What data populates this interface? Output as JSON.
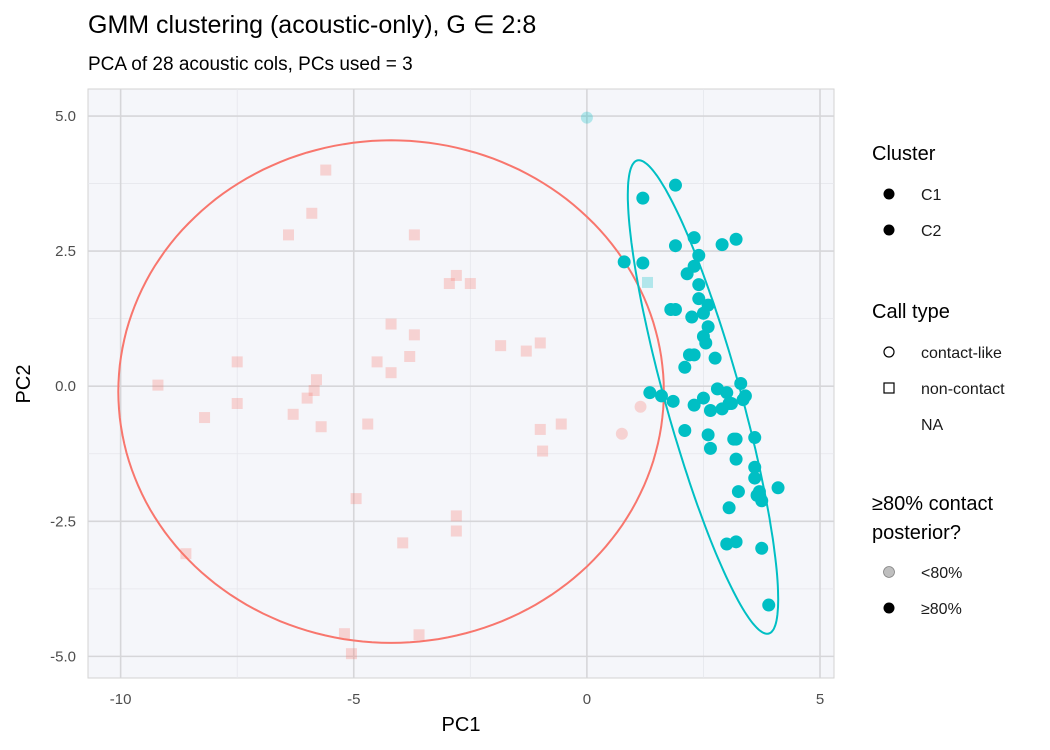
{
  "chart_data": {
    "type": "scatter",
    "title": "GMM clustering (acoustic-only), G ∈ 2:8",
    "subtitle": "PCA of 28 acoustic cols, PCs used = 3",
    "xlabel": "PC1",
    "ylabel": "PC2",
    "xlim": [
      -10.7,
      5.3
    ],
    "ylim": [
      -5.4,
      5.5
    ],
    "xticks": [
      -10,
      -5,
      0,
      5
    ],
    "xtick_labels": [
      "-10",
      "-5",
      "0",
      "5"
    ],
    "yticks": [
      -5,
      -2.5,
      0,
      2.5,
      5
    ],
    "ytick_labels": [
      "-5.0",
      "-2.5",
      "0.0",
      "2.5",
      "5.0"
    ],
    "grid": true,
    "background": "#f5f6fa",
    "legend_position": "right",
    "colors": {
      "C1": "#f8766d",
      "C2": "#00bfc4"
    },
    "legends": {
      "cluster": {
        "title": "Cluster",
        "items": [
          "C1",
          "C2"
        ]
      },
      "call_type": {
        "title": "Call type",
        "items": [
          "contact-like",
          "non-contact",
          "NA"
        ]
      },
      "posterior": {
        "title_lines": [
          "≥80% contact",
          "posterior?"
        ],
        "items": [
          "<80%",
          "≥80%"
        ]
      }
    },
    "ellipses": [
      {
        "cluster": "C1",
        "center": [
          -4.2,
          -0.1
        ],
        "rx": 5.85,
        "ry": 4.65,
        "angle": 0
      },
      {
        "cluster": "C2",
        "center": [
          2.49,
          -0.2
        ],
        "rx": 4.6,
        "ry": 0.8,
        "angle": -72
      }
    ],
    "points": [
      {
        "x": -5.6,
        "y": 4.0,
        "cluster": "C1",
        "shape": "square",
        "confident": false
      },
      {
        "x": -5.9,
        "y": 3.2,
        "cluster": "C1",
        "shape": "square",
        "confident": false
      },
      {
        "x": -6.4,
        "y": 2.8,
        "cluster": "C1",
        "shape": "square",
        "confident": false
      },
      {
        "x": -3.7,
        "y": 2.8,
        "cluster": "C1",
        "shape": "square",
        "confident": false
      },
      {
        "x": -2.8,
        "y": 2.05,
        "cluster": "C1",
        "shape": "square",
        "confident": false
      },
      {
        "x": -2.95,
        "y": 1.9,
        "cluster": "C1",
        "shape": "square",
        "confident": false
      },
      {
        "x": -2.5,
        "y": 1.9,
        "cluster": "C1",
        "shape": "square",
        "confident": false
      },
      {
        "x": -4.2,
        "y": 1.15,
        "cluster": "C1",
        "shape": "square",
        "confident": false
      },
      {
        "x": -3.7,
        "y": 0.95,
        "cluster": "C1",
        "shape": "square",
        "confident": false
      },
      {
        "x": -1.0,
        "y": 0.8,
        "cluster": "C1",
        "shape": "square",
        "confident": false
      },
      {
        "x": -1.85,
        "y": 0.75,
        "cluster": "C1",
        "shape": "square",
        "confident": false
      },
      {
        "x": -1.3,
        "y": 0.65,
        "cluster": "C1",
        "shape": "square",
        "confident": false
      },
      {
        "x": -3.8,
        "y": 0.55,
        "cluster": "C1",
        "shape": "square",
        "confident": false
      },
      {
        "x": -4.5,
        "y": 0.45,
        "cluster": "C1",
        "shape": "square",
        "confident": false
      },
      {
        "x": -7.5,
        "y": 0.45,
        "cluster": "C1",
        "shape": "square",
        "confident": false
      },
      {
        "x": -4.2,
        "y": 0.25,
        "cluster": "C1",
        "shape": "square",
        "confident": false
      },
      {
        "x": -5.8,
        "y": 0.12,
        "cluster": "C1",
        "shape": "square",
        "confident": false
      },
      {
        "x": -9.2,
        "y": 0.02,
        "cluster": "C1",
        "shape": "square",
        "confident": false
      },
      {
        "x": -5.85,
        "y": -0.08,
        "cluster": "C1",
        "shape": "square",
        "confident": false
      },
      {
        "x": -6.0,
        "y": -0.22,
        "cluster": "C1",
        "shape": "square",
        "confident": false
      },
      {
        "x": -7.5,
        "y": -0.32,
        "cluster": "C1",
        "shape": "square",
        "confident": false
      },
      {
        "x": -6.3,
        "y": -0.52,
        "cluster": "C1",
        "shape": "square",
        "confident": false
      },
      {
        "x": -8.2,
        "y": -0.58,
        "cluster": "C1",
        "shape": "square",
        "confident": false
      },
      {
        "x": -5.7,
        "y": -0.75,
        "cluster": "C1",
        "shape": "square",
        "confident": false
      },
      {
        "x": -4.7,
        "y": -0.7,
        "cluster": "C1",
        "shape": "square",
        "confident": false
      },
      {
        "x": -0.55,
        "y": -0.7,
        "cluster": "C1",
        "shape": "square",
        "confident": false
      },
      {
        "x": -1.0,
        "y": -0.8,
        "cluster": "C1",
        "shape": "square",
        "confident": false
      },
      {
        "x": -0.95,
        "y": -1.2,
        "cluster": "C1",
        "shape": "square",
        "confident": false
      },
      {
        "x": -4.95,
        "y": -2.08,
        "cluster": "C1",
        "shape": "square",
        "confident": false
      },
      {
        "x": -2.8,
        "y": -2.4,
        "cluster": "C1",
        "shape": "square",
        "confident": false
      },
      {
        "x": -2.8,
        "y": -2.68,
        "cluster": "C1",
        "shape": "square",
        "confident": false
      },
      {
        "x": -3.95,
        "y": -2.9,
        "cluster": "C1",
        "shape": "square",
        "confident": false
      },
      {
        "x": -8.6,
        "y": -3.1,
        "cluster": "C1",
        "shape": "square",
        "confident": false
      },
      {
        "x": -5.2,
        "y": -4.58,
        "cluster": "C1",
        "shape": "square",
        "confident": false
      },
      {
        "x": -3.6,
        "y": -4.6,
        "cluster": "C1",
        "shape": "square",
        "confident": false
      },
      {
        "x": -5.05,
        "y": -4.95,
        "cluster": "C1",
        "shape": "square",
        "confident": false
      },
      {
        "x": 1.15,
        "y": -0.38,
        "cluster": "C1",
        "shape": "circle",
        "confident": false
      },
      {
        "x": 0.75,
        "y": -0.88,
        "cluster": "C1",
        "shape": "circle",
        "confident": false
      },
      {
        "x": 0.0,
        "y": 4.97,
        "cluster": "C2",
        "shape": "circle",
        "confident": false
      },
      {
        "x": 1.3,
        "y": 1.92,
        "cluster": "C2",
        "shape": "square",
        "confident": false
      },
      {
        "x": 1.9,
        "y": 3.72,
        "cluster": "C2",
        "shape": "circle",
        "confident": true
      },
      {
        "x": 1.2,
        "y": 3.48,
        "cluster": "C2",
        "shape": "circle",
        "confident": true
      },
      {
        "x": 3.2,
        "y": 2.72,
        "cluster": "C2",
        "shape": "circle",
        "confident": true
      },
      {
        "x": 2.3,
        "y": 2.75,
        "cluster": "C2",
        "shape": "circle",
        "confident": true
      },
      {
        "x": 2.9,
        "y": 2.62,
        "cluster": "C2",
        "shape": "circle",
        "confident": true
      },
      {
        "x": 1.9,
        "y": 2.6,
        "cluster": "C2",
        "shape": "circle",
        "confident": true
      },
      {
        "x": 2.4,
        "y": 2.42,
        "cluster": "C2",
        "shape": "circle",
        "confident": true
      },
      {
        "x": 0.8,
        "y": 2.3,
        "cluster": "C2",
        "shape": "circle",
        "confident": true
      },
      {
        "x": 1.2,
        "y": 2.28,
        "cluster": "C2",
        "shape": "circle",
        "confident": true
      },
      {
        "x": 2.3,
        "y": 2.22,
        "cluster": "C2",
        "shape": "circle",
        "confident": true
      },
      {
        "x": 2.15,
        "y": 2.08,
        "cluster": "C2",
        "shape": "circle",
        "confident": true
      },
      {
        "x": 2.4,
        "y": 1.88,
        "cluster": "C2",
        "shape": "circle",
        "confident": true
      },
      {
        "x": 2.4,
        "y": 1.62,
        "cluster": "C2",
        "shape": "circle",
        "confident": true
      },
      {
        "x": 2.6,
        "y": 1.5,
        "cluster": "C2",
        "shape": "circle",
        "confident": true
      },
      {
        "x": 1.8,
        "y": 1.42,
        "cluster": "C2",
        "shape": "circle",
        "confident": true
      },
      {
        "x": 1.9,
        "y": 1.42,
        "cluster": "C2",
        "shape": "circle",
        "confident": true
      },
      {
        "x": 2.5,
        "y": 1.35,
        "cluster": "C2",
        "shape": "circle",
        "confident": true
      },
      {
        "x": 2.25,
        "y": 1.28,
        "cluster": "C2",
        "shape": "circle",
        "confident": true
      },
      {
        "x": 2.6,
        "y": 1.1,
        "cluster": "C2",
        "shape": "circle",
        "confident": true
      },
      {
        "x": 2.5,
        "y": 0.92,
        "cluster": "C2",
        "shape": "circle",
        "confident": true
      },
      {
        "x": 2.55,
        "y": 0.8,
        "cluster": "C2",
        "shape": "circle",
        "confident": true
      },
      {
        "x": 2.2,
        "y": 0.58,
        "cluster": "C2",
        "shape": "circle",
        "confident": true
      },
      {
        "x": 2.3,
        "y": 0.58,
        "cluster": "C2",
        "shape": "circle",
        "confident": true
      },
      {
        "x": 2.75,
        "y": 0.52,
        "cluster": "C2",
        "shape": "circle",
        "confident": true
      },
      {
        "x": 2.1,
        "y": 0.35,
        "cluster": "C2",
        "shape": "circle",
        "confident": true
      },
      {
        "x": 3.3,
        "y": 0.05,
        "cluster": "C2",
        "shape": "circle",
        "confident": true
      },
      {
        "x": 2.8,
        "y": -0.05,
        "cluster": "C2",
        "shape": "circle",
        "confident": true
      },
      {
        "x": 3.0,
        "y": -0.12,
        "cluster": "C2",
        "shape": "circle",
        "confident": true
      },
      {
        "x": 1.35,
        "y": -0.12,
        "cluster": "C2",
        "shape": "circle",
        "confident": true
      },
      {
        "x": 1.6,
        "y": -0.18,
        "cluster": "C2",
        "shape": "circle",
        "confident": true
      },
      {
        "x": 3.4,
        "y": -0.18,
        "cluster": "C2",
        "shape": "circle",
        "confident": true
      },
      {
        "x": 2.5,
        "y": -0.22,
        "cluster": "C2",
        "shape": "circle",
        "confident": true
      },
      {
        "x": 3.35,
        "y": -0.25,
        "cluster": "C2",
        "shape": "circle",
        "confident": true
      },
      {
        "x": 1.85,
        "y": -0.28,
        "cluster": "C2",
        "shape": "circle",
        "confident": true
      },
      {
        "x": 3.05,
        "y": -0.32,
        "cluster": "C2",
        "shape": "circle",
        "confident": true
      },
      {
        "x": 2.3,
        "y": -0.35,
        "cluster": "C2",
        "shape": "circle",
        "confident": true
      },
      {
        "x": 3.1,
        "y": -0.32,
        "cluster": "C2",
        "shape": "circle",
        "confident": true
      },
      {
        "x": 2.9,
        "y": -0.42,
        "cluster": "C2",
        "shape": "circle",
        "confident": true
      },
      {
        "x": 2.65,
        "y": -0.45,
        "cluster": "C2",
        "shape": "circle",
        "confident": true
      },
      {
        "x": 2.1,
        "y": -0.82,
        "cluster": "C2",
        "shape": "circle",
        "confident": true
      },
      {
        "x": 2.6,
        "y": -0.9,
        "cluster": "C2",
        "shape": "circle",
        "confident": true
      },
      {
        "x": 3.15,
        "y": -0.98,
        "cluster": "C2",
        "shape": "circle",
        "confident": true
      },
      {
        "x": 3.2,
        "y": -0.98,
        "cluster": "C2",
        "shape": "circle",
        "confident": true
      },
      {
        "x": 3.6,
        "y": -0.95,
        "cluster": "C2",
        "shape": "circle",
        "confident": true
      },
      {
        "x": 2.65,
        "y": -1.15,
        "cluster": "C2",
        "shape": "circle",
        "confident": true
      },
      {
        "x": 3.2,
        "y": -1.35,
        "cluster": "C2",
        "shape": "circle",
        "confident": true
      },
      {
        "x": 3.6,
        "y": -1.5,
        "cluster": "C2",
        "shape": "circle",
        "confident": true
      },
      {
        "x": 3.6,
        "y": -1.7,
        "cluster": "C2",
        "shape": "circle",
        "confident": true
      },
      {
        "x": 4.1,
        "y": -1.88,
        "cluster": "C2",
        "shape": "circle",
        "confident": true
      },
      {
        "x": 3.25,
        "y": -1.95,
        "cluster": "C2",
        "shape": "circle",
        "confident": true
      },
      {
        "x": 3.7,
        "y": -1.95,
        "cluster": "C2",
        "shape": "circle",
        "confident": true
      },
      {
        "x": 3.65,
        "y": -2.02,
        "cluster": "C2",
        "shape": "circle",
        "confident": true
      },
      {
        "x": 3.75,
        "y": -2.12,
        "cluster": "C2",
        "shape": "circle",
        "confident": true
      },
      {
        "x": 3.05,
        "y": -2.25,
        "cluster": "C2",
        "shape": "circle",
        "confident": true
      },
      {
        "x": 3.0,
        "y": -2.92,
        "cluster": "C2",
        "shape": "circle",
        "confident": true
      },
      {
        "x": 3.2,
        "y": -2.88,
        "cluster": "C2",
        "shape": "circle",
        "confident": true
      },
      {
        "x": 3.75,
        "y": -3.0,
        "cluster": "C2",
        "shape": "circle",
        "confident": true
      },
      {
        "x": 3.9,
        "y": -4.05,
        "cluster": "C2",
        "shape": "circle",
        "confident": true
      }
    ]
  }
}
